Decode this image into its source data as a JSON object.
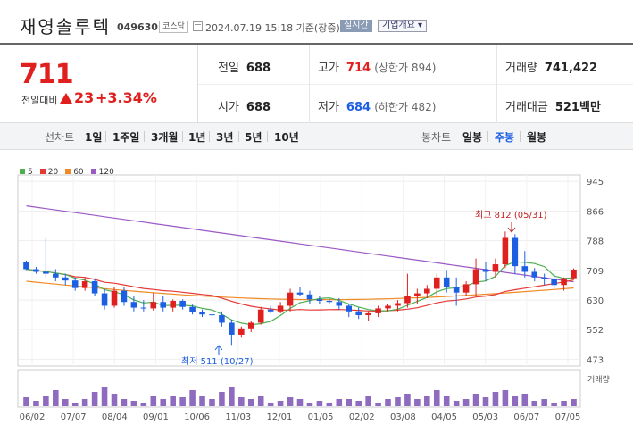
{
  "header": {
    "name": "재영솔루텍",
    "code": "049630",
    "market": "코스닥",
    "datetime": "2024.07.19 15:18 기준(장중)",
    "realtime_label": "실시간",
    "company_info_label": "기업개요"
  },
  "summary": {
    "price": "711",
    "change_label": "전일대비",
    "change_value": "23",
    "change_pct": "+3.34%",
    "prev_close_label": "전일",
    "prev_close": "688",
    "high_label": "고가",
    "high": "714",
    "upper_limit": "(상한가 894)",
    "volume_label": "거래량",
    "volume": "741,422",
    "open_label": "시가",
    "open": "688",
    "low_label": "저가",
    "low": "684",
    "lower_limit": "(하한가 482)",
    "amount_label": "거래대금",
    "amount": "521",
    "amount_unit": "백만"
  },
  "periods": {
    "line_label": "선차트",
    "line_items": [
      "1일",
      "1주일",
      "3개월",
      "1년",
      "3년",
      "5년",
      "10년"
    ],
    "candle_label": "봉차트",
    "candle_items": [
      "일봉",
      "주봉",
      "월봉"
    ],
    "selected_candle": "주봉"
  },
  "colors": {
    "up": "#e0201f",
    "down": "#1c5fe3",
    "ma5": "#4caf50",
    "ma20": "#e53935",
    "ma60": "#f08a24",
    "ma120": "#9b59c6",
    "volume": "#8e6bbf"
  },
  "chart_data": {
    "type": "candlestick",
    "legend": [
      {
        "name": "5",
        "color": "#4caf50"
      },
      {
        "name": "20",
        "color": "#e53935"
      },
      {
        "name": "60",
        "color": "#f08a24"
      },
      {
        "name": "120",
        "color": "#9b59c6"
      }
    ],
    "y_ticks": [
      945,
      866,
      788,
      709,
      630,
      552,
      473
    ],
    "ylim": [
      455,
      962
    ],
    "x_labels": [
      "06/02",
      "07/07",
      "08/04",
      "09/01",
      "10/06",
      "11/03",
      "12/01",
      "01/05",
      "02/02",
      "03/08",
      "04/05",
      "05/03",
      "06/07",
      "07/05"
    ],
    "high_annotation": "최고 812 (05/31)",
    "low_annotation": "최저 511 (10/27)",
    "volume_label": "거래량",
    "candles": [
      [
        730,
        735,
        710,
        712
      ],
      [
        712,
        718,
        700,
        705
      ],
      [
        705,
        795,
        690,
        700
      ],
      [
        700,
        712,
        680,
        690
      ],
      [
        690,
        700,
        670,
        682
      ],
      [
        682,
        690,
        655,
        662
      ],
      [
        662,
        690,
        655,
        680
      ],
      [
        680,
        688,
        640,
        648
      ],
      [
        648,
        660,
        605,
        615
      ],
      [
        615,
        665,
        610,
        655
      ],
      [
        655,
        665,
        615,
        625
      ],
      [
        625,
        640,
        600,
        610
      ],
      [
        610,
        630,
        600,
        608
      ],
      [
        608,
        650,
        602,
        625
      ],
      [
        625,
        640,
        600,
        610
      ],
      [
        610,
        632,
        600,
        628
      ],
      [
        628,
        632,
        605,
        612
      ],
      [
        612,
        618,
        592,
        598
      ],
      [
        598,
        605,
        585,
        592
      ],
      [
        592,
        600,
        580,
        590
      ],
      [
        590,
        600,
        560,
        570
      ],
      [
        570,
        578,
        511,
        538
      ],
      [
        538,
        560,
        530,
        555
      ],
      [
        555,
        575,
        545,
        570
      ],
      [
        570,
        612,
        565,
        605
      ],
      [
        605,
        615,
        595,
        600
      ],
      [
        600,
        625,
        595,
        615
      ],
      [
        615,
        660,
        600,
        650
      ],
      [
        650,
        665,
        640,
        645
      ],
      [
        645,
        655,
        620,
        632
      ],
      [
        632,
        640,
        620,
        628
      ],
      [
        628,
        635,
        618,
        625
      ],
      [
        625,
        635,
        605,
        615
      ],
      [
        615,
        620,
        585,
        600
      ],
      [
        600,
        610,
        580,
        590
      ],
      [
        590,
        600,
        575,
        595
      ],
      [
        595,
        615,
        585,
        608
      ],
      [
        608,
        620,
        600,
        615
      ],
      [
        615,
        630,
        600,
        622
      ],
      [
        622,
        700,
        610,
        640
      ],
      [
        640,
        660,
        620,
        648
      ],
      [
        648,
        670,
        635,
        660
      ],
      [
        660,
        700,
        640,
        690
      ],
      [
        690,
        710,
        650,
        665
      ],
      [
        665,
        690,
        615,
        650
      ],
      [
        650,
        680,
        640,
        672
      ],
      [
        672,
        740,
        640,
        712
      ],
      [
        712,
        730,
        680,
        705
      ],
      [
        705,
        740,
        690,
        725
      ],
      [
        725,
        812,
        715,
        795
      ],
      [
        795,
        805,
        700,
        720
      ],
      [
        720,
        760,
        690,
        705
      ],
      [
        705,
        715,
        680,
        690
      ],
      [
        690,
        700,
        670,
        685
      ],
      [
        685,
        700,
        660,
        670
      ],
      [
        670,
        690,
        655,
        688
      ],
      [
        688,
        714,
        684,
        711
      ]
    ],
    "volumes": [
      0.25,
      0.15,
      0.3,
      0.45,
      0.2,
      0.1,
      0.2,
      0.4,
      0.55,
      0.35,
      0.2,
      0.15,
      0.1,
      0.3,
      0.2,
      0.3,
      0.25,
      0.45,
      0.3,
      0.2,
      0.4,
      0.55,
      0.25,
      0.2,
      0.3,
      0.1,
      0.15,
      0.25,
      0.2,
      0.1,
      0.15,
      0.1,
      0.2,
      0.2,
      0.15,
      0.3,
      0.1,
      0.2,
      0.25,
      0.35,
      0.2,
      0.3,
      0.45,
      0.3,
      0.15,
      0.2,
      0.35,
      0.25,
      0.4,
      0.45,
      0.3,
      0.35,
      0.15,
      0.2,
      0.1,
      0.15,
      0.2
    ]
  }
}
